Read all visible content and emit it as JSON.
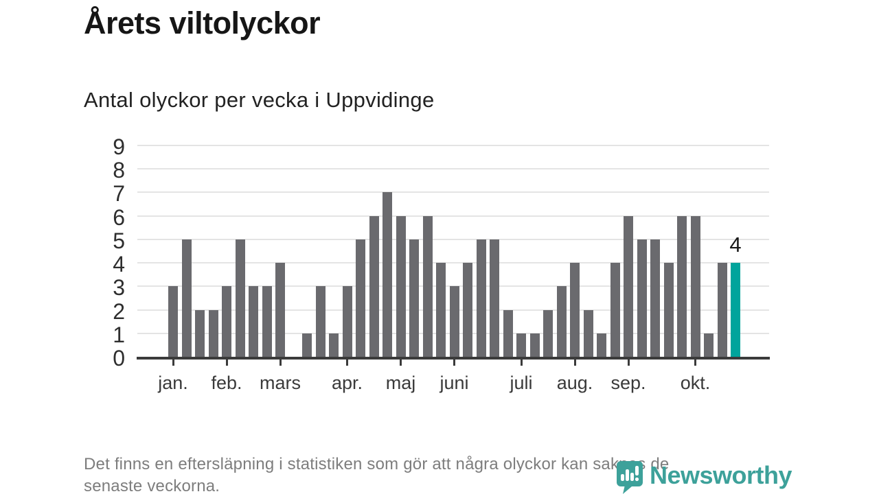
{
  "header": {
    "title": "Årets viltolyckor",
    "subtitle": "Antal olyckor per vecka i Uppvidinge"
  },
  "chart_data": {
    "type": "bar",
    "title": "Årets viltolyckor",
    "subtitle": "Antal olyckor per vecka i Uppvidinge",
    "x_unit": "vecka",
    "values": [
      3,
      5,
      2,
      2,
      3,
      5,
      3,
      3,
      4,
      0,
      1,
      3,
      1,
      3,
      5,
      6,
      7,
      6,
      5,
      6,
      4,
      3,
      4,
      5,
      5,
      2,
      1,
      1,
      2,
      3,
      4,
      2,
      1,
      4,
      6,
      5,
      5,
      4,
      6,
      6,
      1,
      4,
      4
    ],
    "month_ticks": [
      {
        "label": "jan.",
        "week": 1
      },
      {
        "label": "feb.",
        "week": 5
      },
      {
        "label": "mars",
        "week": 9
      },
      {
        "label": "apr.",
        "week": 14
      },
      {
        "label": "maj",
        "week": 18
      },
      {
        "label": "juni",
        "week": 22
      },
      {
        "label": "juli",
        "week": 27
      },
      {
        "label": "aug.",
        "week": 31
      },
      {
        "label": "sep.",
        "week": 35
      },
      {
        "label": "okt.",
        "week": 40
      }
    ],
    "yticks": [
      0,
      1,
      2,
      3,
      4,
      5,
      6,
      7,
      8,
      9
    ],
    "ylim": [
      0,
      9
    ],
    "grid": true,
    "legend": "none",
    "highlight": {
      "index": 42,
      "label": "4"
    },
    "colors": {
      "bar": "#6a6a6e",
      "highlight": "#00a49c"
    }
  },
  "footer": {
    "note_lines": [
      "Det finns en eftersläpning i statistiken som gör att några olyckor kan saknas de",
      "senaste veckorna."
    ]
  },
  "logo": {
    "text": "Newsworthy",
    "color": "#3da19a"
  }
}
